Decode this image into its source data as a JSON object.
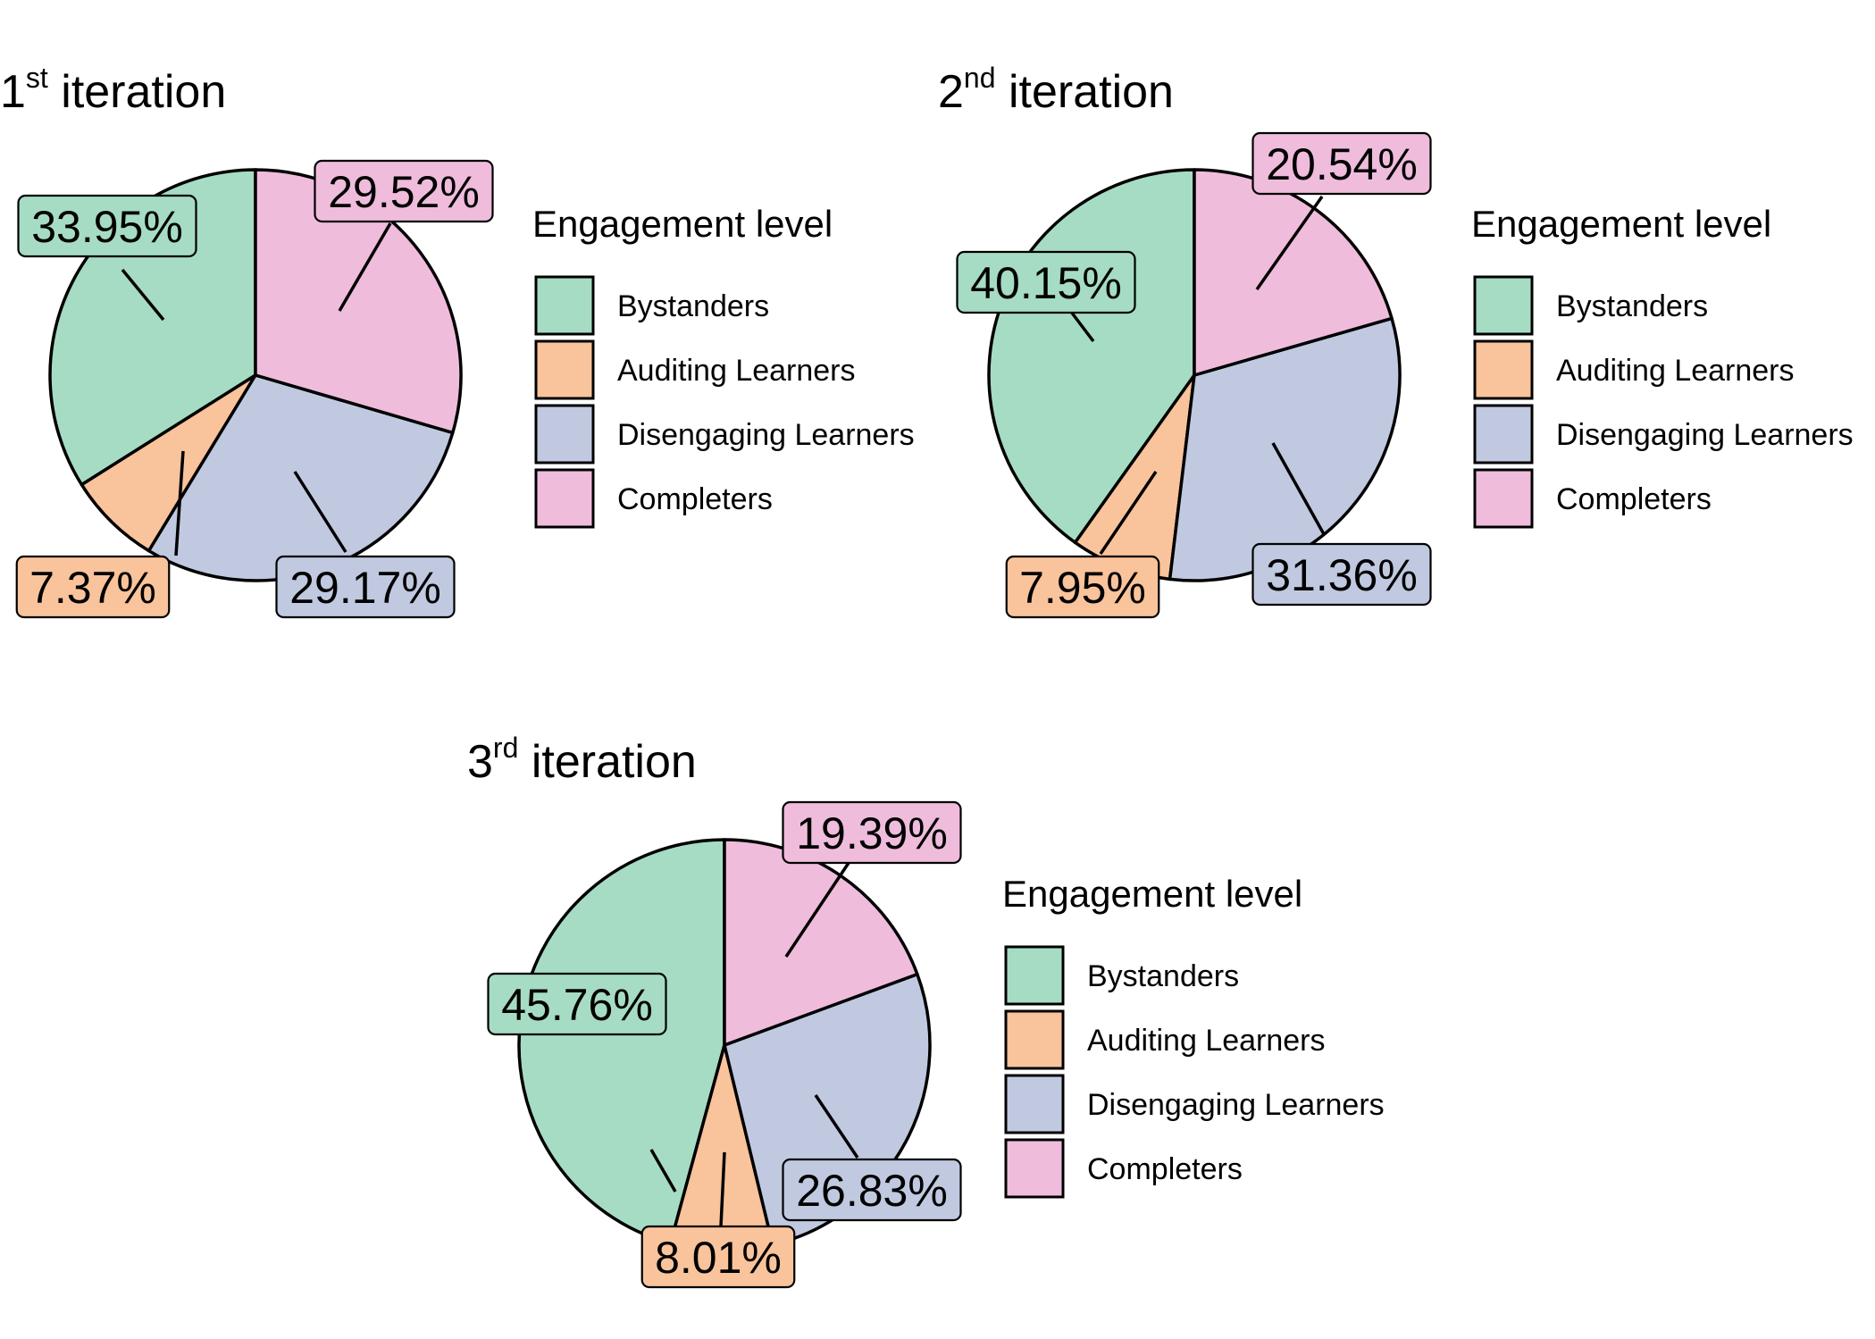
{
  "legend_title": "Engagement level",
  "categories": [
    "Bystanders",
    "Auditing Learners",
    "Disengaging Learners",
    "Completers"
  ],
  "colors": [
    "#a6dcc3",
    "#f9c39b",
    "#c0c9e0",
    "#efbcdc"
  ],
  "chart_data": [
    {
      "type": "pie",
      "title": {
        "number": "1",
        "suffix": "st",
        "text": " iteration"
      },
      "legend_title": "Engagement level",
      "legend_position": "right",
      "categories": [
        "Bystanders",
        "Auditing Learners",
        "Disengaging Learners",
        "Completers"
      ],
      "values": [
        33.95,
        7.37,
        29.17,
        29.52
      ],
      "labels": [
        "33.95%",
        "7.37%",
        "29.17%",
        "29.52%"
      ]
    },
    {
      "type": "pie",
      "title": {
        "number": "2",
        "suffix": "nd",
        "text": " iteration"
      },
      "legend_title": "Engagement level",
      "legend_position": "right",
      "categories": [
        "Bystanders",
        "Auditing Learners",
        "Disengaging Learners",
        "Completers"
      ],
      "values": [
        40.15,
        7.95,
        31.36,
        20.54
      ],
      "labels": [
        "40.15%",
        "7.95%",
        "31.36%",
        "20.54%"
      ]
    },
    {
      "type": "pie",
      "title": {
        "number": "3",
        "suffix": "rd",
        "text": " iteration"
      },
      "legend_title": "Engagement level",
      "legend_position": "right",
      "categories": [
        "Bystanders",
        "Auditing Learners",
        "Disengaging Learners",
        "Completers"
      ],
      "values": [
        45.76,
        8.01,
        26.83,
        19.39
      ],
      "labels": [
        "45.76%",
        "8.01%",
        "26.83%",
        "19.39%"
      ]
    }
  ]
}
